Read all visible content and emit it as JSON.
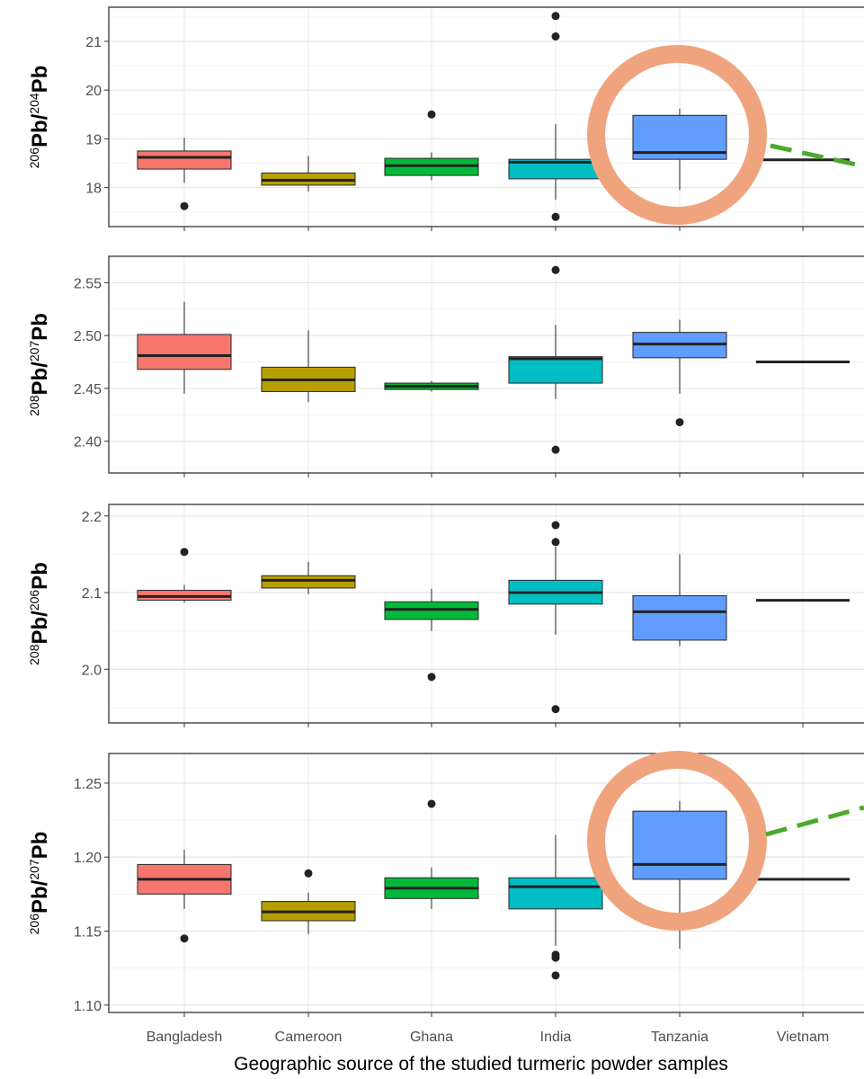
{
  "chart_data": {
    "type": "box",
    "xlabel": "Geographic source of the studied turmeric powder samples",
    "categories": [
      "Bangladesh",
      "Cameroon",
      "Ghana",
      "India",
      "Tanzania",
      "Vietnam"
    ],
    "colors": {
      "Bangladesh": "#F8766D",
      "Cameroon": "#B79F00",
      "Ghana": "#00BA38",
      "India": "#00BFC4",
      "Tanzania": "#619CFF",
      "Vietnam": "#F564E3"
    },
    "highlight": {
      "shape": "circle",
      "category": "Tanzania",
      "panels": [
        1,
        4
      ],
      "color": "#F0A47E",
      "leader_color": "#4BAA2A"
    },
    "grid": true,
    "panels": [
      {
        "ylabel": {
          "sup1": "206",
          "el1": "Pb",
          "sep": "/",
          "sup2": "204",
          "el2": "Pb"
        },
        "ylim": [
          17.2,
          21.7
        ],
        "yticks": [
          "18",
          "19",
          "20",
          "21"
        ],
        "boxes": [
          {
            "category": "Bangladesh",
            "min": 18.1,
            "q1": 18.38,
            "median": 18.62,
            "q3": 18.75,
            "max": 19.02,
            "outliers": [
              17.62
            ]
          },
          {
            "category": "Cameroon",
            "min": 17.92,
            "q1": 18.05,
            "median": 18.15,
            "q3": 18.3,
            "max": 18.65,
            "outliers": []
          },
          {
            "category": "Ghana",
            "min": 18.15,
            "q1": 18.25,
            "median": 18.45,
            "q3": 18.6,
            "max": 18.72,
            "outliers": [
              19.5
            ]
          },
          {
            "category": "India",
            "min": 17.75,
            "q1": 18.18,
            "median": 18.52,
            "q3": 18.58,
            "max": 19.3,
            "outliers": [
              21.1,
              21.52,
              17.4
            ]
          },
          {
            "category": "Tanzania",
            "min": 17.95,
            "q1": 18.58,
            "median": 18.72,
            "q3": 19.48,
            "max": 19.62,
            "outliers": []
          },
          {
            "category": "Vietnam",
            "min": 18.57,
            "q1": 18.57,
            "median": 18.57,
            "q3": 18.57,
            "max": 18.57,
            "outliers": []
          }
        ]
      },
      {
        "ylabel": {
          "sup1": "208",
          "el1": "Pb",
          "sep": "/",
          "sup2": "207",
          "el2": "Pb"
        },
        "ylim": [
          2.37,
          2.575
        ],
        "yticks": [
          "2.40",
          "2.45",
          "2.50",
          "2.55"
        ],
        "boxes": [
          {
            "category": "Bangladesh",
            "min": 2.445,
            "q1": 2.468,
            "median": 2.481,
            "q3": 2.501,
            "max": 2.532,
            "outliers": []
          },
          {
            "category": "Cameroon",
            "min": 2.437,
            "q1": 2.447,
            "median": 2.458,
            "q3": 2.47,
            "max": 2.505,
            "outliers": []
          },
          {
            "category": "Ghana",
            "min": 2.447,
            "q1": 2.449,
            "median": 2.452,
            "q3": 2.455,
            "max": 2.457,
            "outliers": []
          },
          {
            "category": "India",
            "min": 2.44,
            "q1": 2.455,
            "median": 2.478,
            "q3": 2.48,
            "max": 2.51,
            "outliers": [
              2.562,
              2.392
            ]
          },
          {
            "category": "Tanzania",
            "min": 2.445,
            "q1": 2.479,
            "median": 2.492,
            "q3": 2.503,
            "max": 2.515,
            "outliers": [
              2.418
            ]
          },
          {
            "category": "Vietnam",
            "min": 2.475,
            "q1": 2.475,
            "median": 2.475,
            "q3": 2.475,
            "max": 2.475,
            "outliers": []
          }
        ]
      },
      {
        "ylabel": {
          "sup1": "208",
          "el1": "Pb",
          "sep": "/",
          "sup2": "206",
          "el2": "Pb"
        },
        "ylim": [
          1.93,
          2.215
        ],
        "yticks": [
          "2.0",
          "2.1",
          "2.2"
        ],
        "boxes": [
          {
            "category": "Bangladesh",
            "min": 2.087,
            "q1": 2.09,
            "median": 2.095,
            "q3": 2.103,
            "max": 2.11,
            "outliers": [
              2.153
            ]
          },
          {
            "category": "Cameroon",
            "min": 2.098,
            "q1": 2.106,
            "median": 2.116,
            "q3": 2.122,
            "max": 2.14,
            "outliers": []
          },
          {
            "category": "Ghana",
            "min": 2.05,
            "q1": 2.065,
            "median": 2.078,
            "q3": 2.088,
            "max": 2.105,
            "outliers": [
              1.99
            ]
          },
          {
            "category": "India",
            "min": 2.045,
            "q1": 2.085,
            "median": 2.1,
            "q3": 2.116,
            "max": 2.16,
            "outliers": [
              2.188,
              2.166,
              1.948
            ]
          },
          {
            "category": "Tanzania",
            "min": 2.03,
            "q1": 2.038,
            "median": 2.075,
            "q3": 2.096,
            "max": 2.15,
            "outliers": []
          },
          {
            "category": "Vietnam",
            "min": 2.09,
            "q1": 2.09,
            "median": 2.09,
            "q3": 2.09,
            "max": 2.09,
            "outliers": []
          }
        ]
      },
      {
        "ylabel": {
          "sup1": "206",
          "el1": "Pb",
          "sep": "/",
          "sup2": "207",
          "el2": "Pb"
        },
        "ylim": [
          1.095,
          1.27
        ],
        "yticks": [
          "1.10",
          "1.15",
          "1.20",
          "1.25"
        ],
        "boxes": [
          {
            "category": "Bangladesh",
            "min": 1.165,
            "q1": 1.175,
            "median": 1.185,
            "q3": 1.195,
            "max": 1.205,
            "outliers": [
              1.145
            ]
          },
          {
            "category": "Cameroon",
            "min": 1.148,
            "q1": 1.157,
            "median": 1.163,
            "q3": 1.17,
            "max": 1.176,
            "outliers": [
              1.189
            ]
          },
          {
            "category": "Ghana",
            "min": 1.165,
            "q1": 1.172,
            "median": 1.179,
            "q3": 1.186,
            "max": 1.193,
            "outliers": [
              1.236
            ]
          },
          {
            "category": "India",
            "min": 1.14,
            "q1": 1.165,
            "median": 1.18,
            "q3": 1.186,
            "max": 1.215,
            "outliers": [
              1.134,
              1.132,
              1.12
            ]
          },
          {
            "category": "Tanzania",
            "min": 1.138,
            "q1": 1.185,
            "median": 1.195,
            "q3": 1.231,
            "max": 1.238,
            "outliers": []
          },
          {
            "category": "Vietnam",
            "min": 1.185,
            "q1": 1.185,
            "median": 1.185,
            "q3": 1.185,
            "max": 1.185,
            "outliers": []
          }
        ]
      }
    ]
  }
}
